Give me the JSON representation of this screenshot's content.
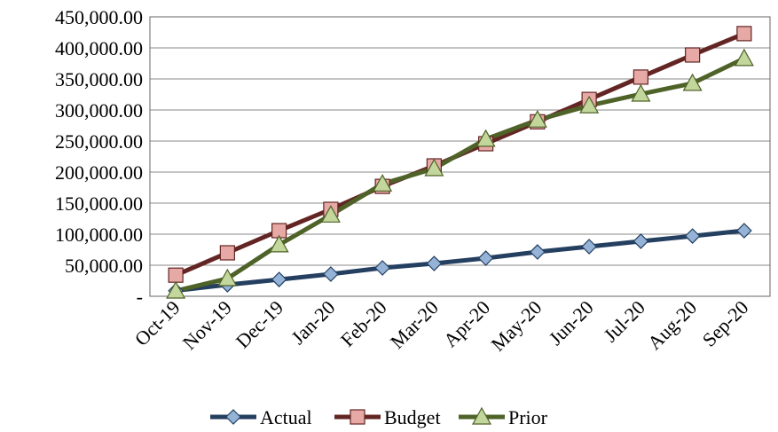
{
  "chart_data": {
    "type": "line",
    "categories": [
      "Oct-19",
      "Nov-19",
      "Dec-19",
      "Jan-20",
      "Feb-20",
      "Mar-20",
      "Apr-20",
      "May-20",
      "Jun-20",
      "Jul-20",
      "Aug-20",
      "Sep-20"
    ],
    "series": [
      {
        "name": "Actual",
        "color": "#243f60",
        "marker_color": "#95b3d7",
        "marker": "diamond",
        "values": [
          9000,
          18600,
          27000,
          35700,
          45700,
          52800,
          61400,
          71400,
          80000,
          88600,
          97000,
          105700
        ]
      },
      {
        "name": "Budget",
        "color": "#632523",
        "marker_color": "#e6a9a6",
        "marker": "square",
        "values": [
          34000,
          70000,
          105700,
          140000,
          177000,
          210000,
          245700,
          281000,
          317000,
          353000,
          388600,
          423000
        ]
      },
      {
        "name": "Prior",
        "color": "#4f6228",
        "marker_color": "#c3d69b",
        "marker": "triangle",
        "values": [
          8600,
          28600,
          83000,
          131000,
          181000,
          205700,
          253000,
          284000,
          307000,
          325700,
          343000,
          383000
        ]
      }
    ],
    "ylim": [
      0,
      450000
    ],
    "yticks": [
      {
        "value": 0,
        "label": "-"
      },
      {
        "value": 50000,
        "label": "50,000.00"
      },
      {
        "value": 100000,
        "label": "100,000.00"
      },
      {
        "value": 150000,
        "label": "150,000.00"
      },
      {
        "value": 200000,
        "label": "200,000.00"
      },
      {
        "value": 250000,
        "label": "250,000.00"
      },
      {
        "value": 300000,
        "label": "300,000.00"
      },
      {
        "value": 350000,
        "label": "350,000.00"
      },
      {
        "value": 400000,
        "label": "400,000.00"
      },
      {
        "value": 450000,
        "label": "450,000.00"
      }
    ],
    "grid": true,
    "legend": "bottom"
  }
}
